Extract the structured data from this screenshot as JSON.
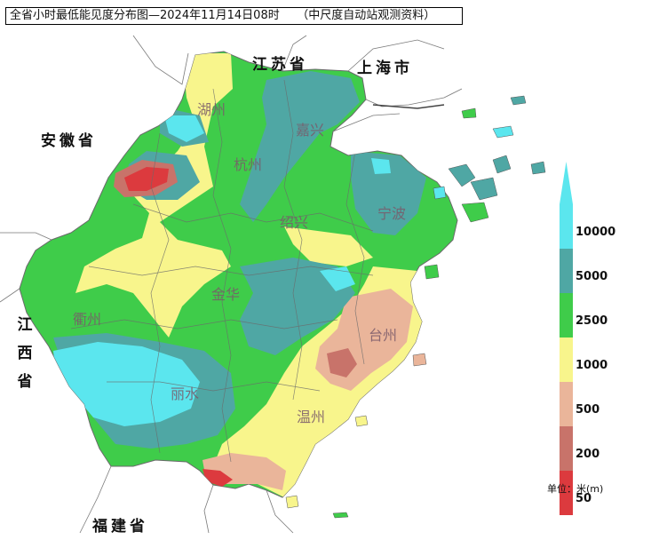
{
  "title": "全省小时最低能见度分布图—2024年11月14日08时　　（中尺度自动站观测资料）",
  "region_labels": {
    "jiangsu": "江苏省",
    "shanghai": "上海市",
    "anhui": "安徽省",
    "jiangxi": [
      "江",
      "西",
      "省"
    ],
    "fujian": "福建省"
  },
  "cities": [
    "湖州",
    "嘉兴",
    "杭州",
    "绍兴",
    "宁波",
    "金华",
    "衢州",
    "台州",
    "丽水",
    "温州"
  ],
  "legend": {
    "unit": "单位：米(m)",
    "classes": [
      {
        "label": "10000",
        "color": "#5be6ee"
      },
      {
        "label": "5000",
        "color": "#4fa7a4"
      },
      {
        "label": "2500",
        "color": "#3fcc4a"
      },
      {
        "label": "1000",
        "color": "#f8f58c"
      },
      {
        "label": "500",
        "color": "#eab59a"
      },
      {
        "label": "200",
        "color": "#c8736a"
      },
      {
        "label": "50",
        "color": "#dc3a3e"
      }
    ],
    "arrow_top_color": "#5be6ee",
    "arrow_bottom_color": "#8a2a2e"
  }
}
